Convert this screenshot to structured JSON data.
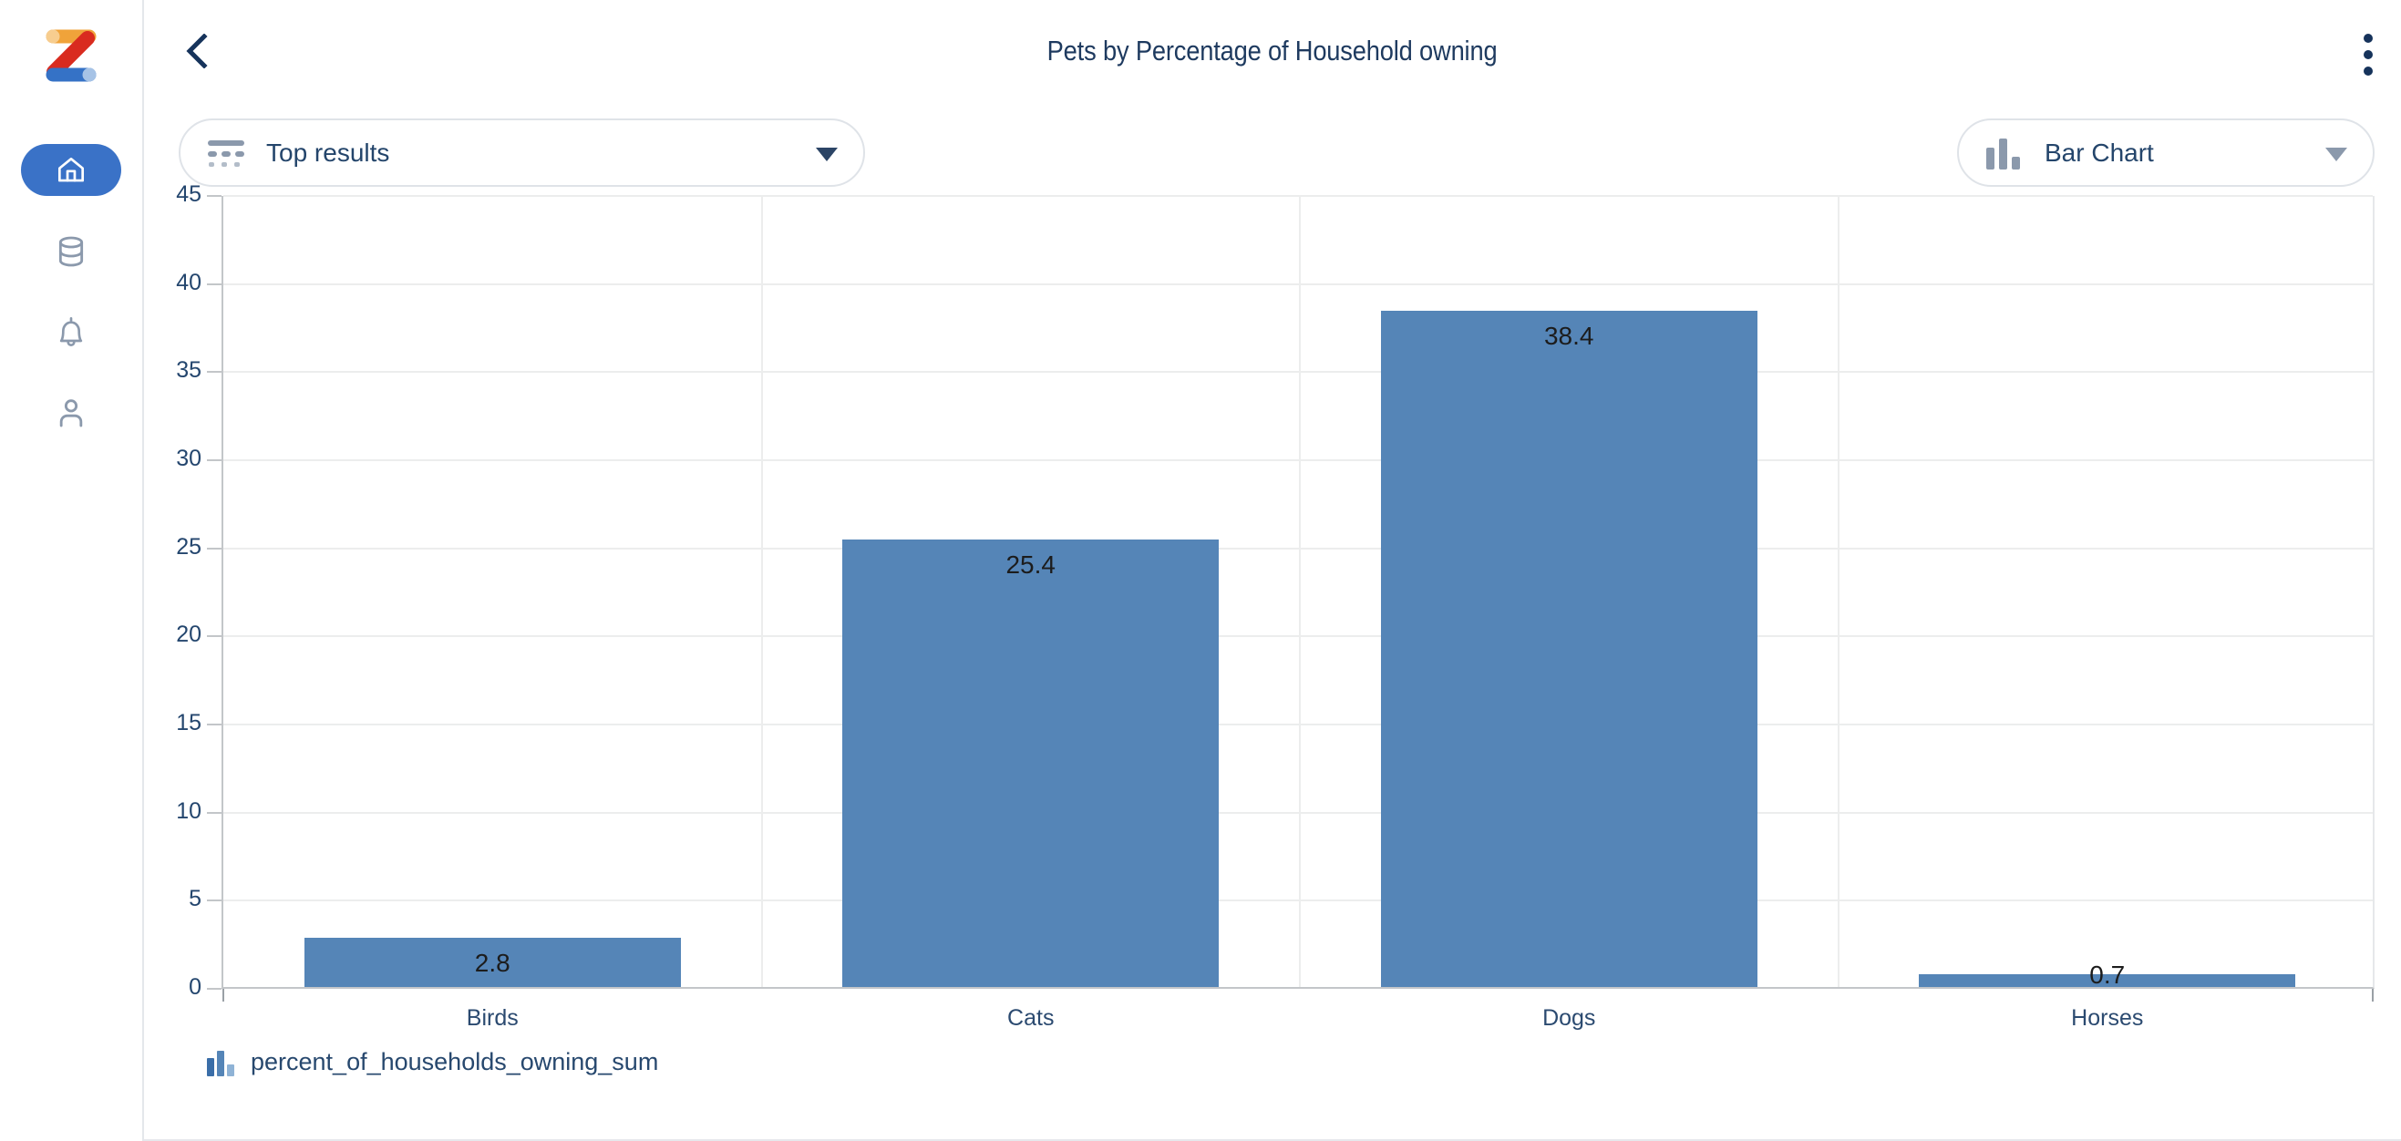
{
  "header": {
    "title": "Pets by Percentage of Household owning"
  },
  "toolbar": {
    "top_results_label": "Top results",
    "chart_type_label": "Bar Chart"
  },
  "sidebar": {
    "items": [
      {
        "id": "home",
        "icon": "home-icon",
        "active": true
      },
      {
        "id": "data",
        "icon": "database-icon",
        "active": false
      },
      {
        "id": "notifications",
        "icon": "bell-icon",
        "active": false
      },
      {
        "id": "profile",
        "icon": "user-icon",
        "active": false
      }
    ]
  },
  "chart_data": {
    "type": "bar",
    "title": "Pets by Percentage of Household owning",
    "categories": [
      "Birds",
      "Cats",
      "Dogs",
      "Horses"
    ],
    "values": [
      2.8,
      25.4,
      38.4,
      0.7
    ],
    "series_name": "percent_of_households_owning_sum",
    "xlabel": "",
    "ylabel": "",
    "ylim": [
      0,
      45
    ],
    "ytick_step": 5,
    "grid": true,
    "legend_position": "bottom-left",
    "bar_color": "#5585b7",
    "value_label_color": "#1c1c1c"
  },
  "legend": {
    "label": "percent_of_households_owning_sum",
    "icon_colors": [
      "#3a6ea8",
      "#5585b7",
      "#8fb3d6"
    ]
  },
  "colors": {
    "accent_blue": "#3a72c7",
    "bar_blue": "#5585b7",
    "navy_text": "#1e3a5f",
    "icon_gray": "#8b99ac"
  }
}
